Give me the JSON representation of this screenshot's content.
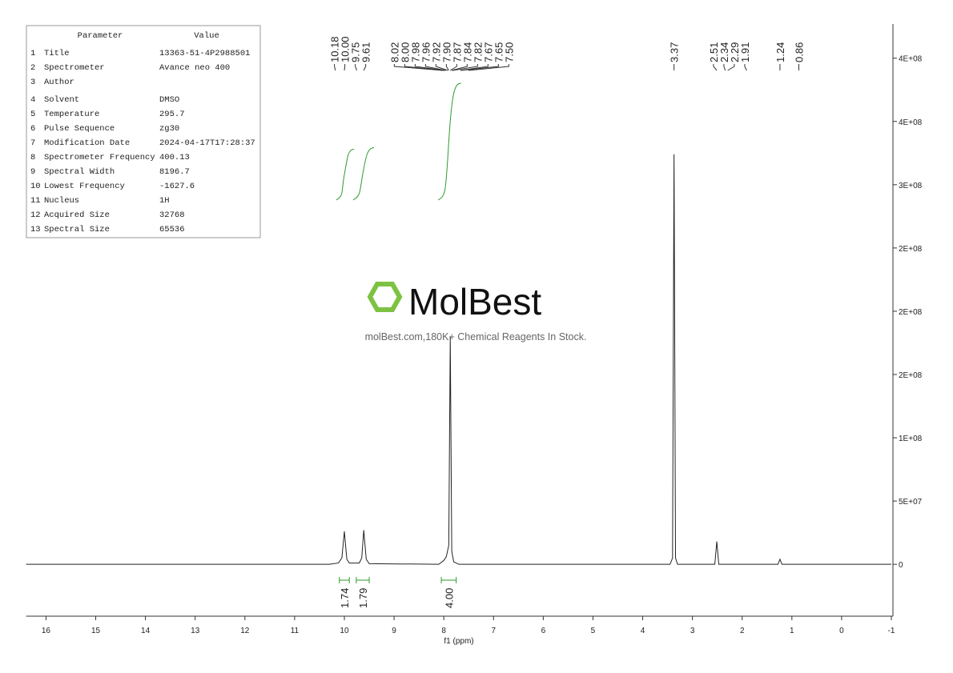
{
  "parameters": {
    "header": [
      "Parameter",
      "Value"
    ],
    "rows": [
      [
        "1",
        "Title",
        "13363-51-4P2988501"
      ],
      [
        "2",
        "Spectrometer",
        "Avance neo 400"
      ],
      [
        "3",
        "Author",
        ""
      ],
      [
        "4",
        "Solvent",
        "DMSO"
      ],
      [
        "5",
        "Temperature",
        "295.7"
      ],
      [
        "6",
        "Pulse Sequence",
        "zg30"
      ],
      [
        "7",
        "Modification Date",
        "2024-04-17T17:28:37"
      ],
      [
        "8",
        "Spectrometer Frequency",
        "400.13"
      ],
      [
        "9",
        "Spectral Width",
        "8196.7"
      ],
      [
        "10",
        "Lowest Frequency",
        "-1627.6"
      ],
      [
        "11",
        "Nucleus",
        "1H"
      ],
      [
        "12",
        "Acquired Size",
        "32768"
      ],
      [
        "13",
        "Spectral Size",
        "65536"
      ]
    ]
  },
  "watermark": {
    "brand": "MolBest",
    "tagline": "molBest.com,180K+ Chemical Reagents In Stock."
  },
  "chart_data": {
    "type": "line",
    "x_label": "f1 (ppm)",
    "x": [
      16.4,
      10.3,
      10.12,
      10.05,
      10.0,
      9.95,
      9.9,
      9.7,
      9.65,
      9.61,
      9.56,
      9.5,
      8.1,
      8.0,
      7.95,
      7.9,
      7.87,
      7.84,
      7.8,
      7.7,
      3.45,
      3.4,
      3.37,
      3.34,
      3.3,
      2.55,
      2.51,
      2.47,
      1.28,
      1.24,
      1.2,
      -1
    ],
    "series": [
      {
        "color": "#222222",
        "values": [
          0,
          0,
          1000000,
          5000000,
          26000000,
          4000000,
          1000000,
          1000000,
          5000000,
          27000000,
          4000000,
          500000,
          0,
          3000000,
          6000000,
          15000000,
          180000000,
          10000000,
          2000000,
          0,
          0,
          5000000,
          324000000,
          5000000,
          0,
          0,
          18000000,
          0,
          0,
          4000000,
          0,
          0
        ]
      }
    ],
    "xlim": [
      16.4,
      -1
    ],
    "xticks": [
      16,
      15,
      14,
      13,
      12,
      11,
      10,
      9,
      8,
      7,
      6,
      5,
      4,
      3,
      2,
      1,
      0,
      -1
    ],
    "ylim": [
      -41000000,
      427000000
    ],
    "yticks": [
      0,
      {
        "value": 50000000,
        "label": "5E+07"
      },
      {
        "value": 100000000,
        "label": "1E+08"
      },
      {
        "value": 150000000,
        "label": "2E+08"
      },
      {
        "value": 200000000,
        "label": "2E+08"
      },
      {
        "value": 250000000,
        "label": "2E+08"
      },
      {
        "value": 300000000,
        "label": "3E+08"
      },
      {
        "value": 350000000,
        "label": "4E+08"
      },
      {
        "value": 400000000,
        "label": "4E+08"
      }
    ],
    "peak_labels": [
      "10.18",
      "10.00",
      "9.75",
      "9.61",
      "8.02",
      "8.00",
      "7.98",
      "7.96",
      "7.92",
      "7.90",
      "7.87",
      "7.84",
      "7.82",
      "7.67",
      "7.65",
      "7.50",
      "3.37",
      "2.51",
      "2.34",
      "2.29",
      "1.91",
      "1.24",
      "0.86"
    ],
    "integrals": {
      "ranges": [
        [
          10.1,
          9.9
        ],
        [
          9.76,
          9.5
        ],
        [
          8.05,
          7.75
        ]
      ],
      "values": [
        1.74,
        1.79,
        4.0
      ],
      "value_labels": [
        "1.74",
        "1.79",
        "4.00"
      ],
      "color": "#2e9a2e"
    }
  }
}
